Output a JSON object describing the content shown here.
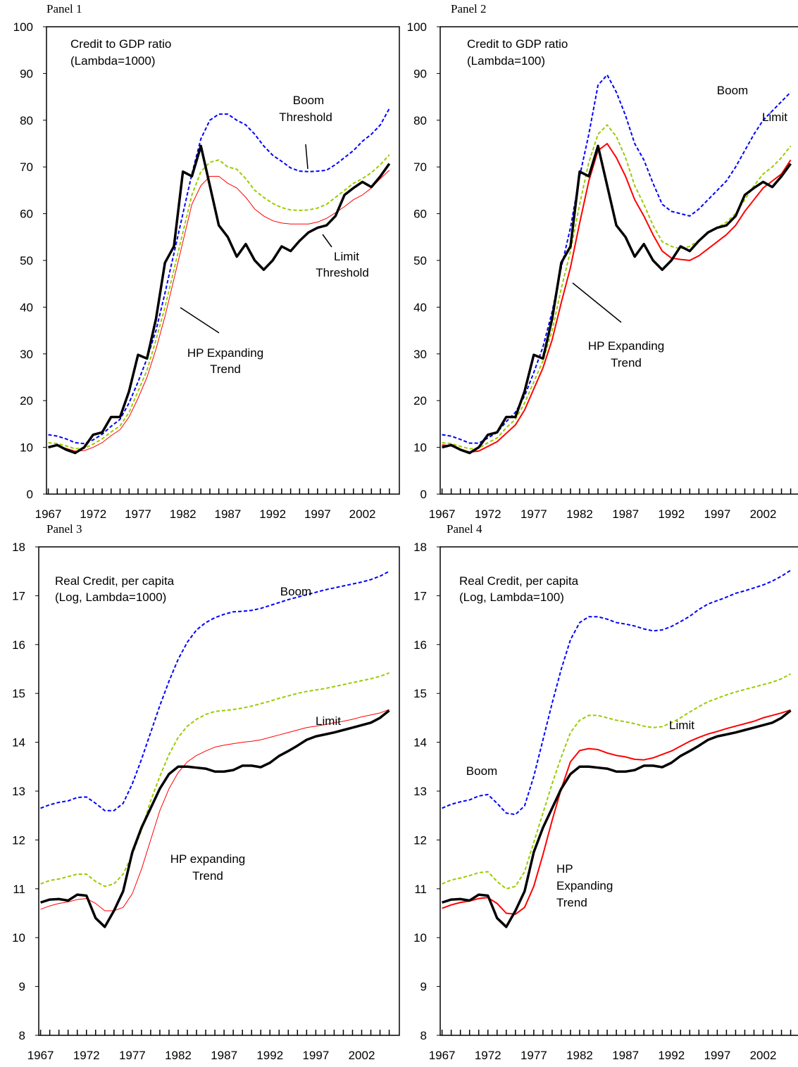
{
  "chart_data": [
    {
      "type": "line",
      "panel": "Panel 1",
      "annotations": [
        "Credit to GDP ratio",
        "(Lambda=1000)",
        "Boom",
        "Threshold",
        "Limit",
        "Threshold",
        "HP Expanding",
        "Trend"
      ],
      "x": [
        1967,
        1968,
        1969,
        1970,
        1971,
        1972,
        1973,
        1974,
        1975,
        1976,
        1977,
        1978,
        1979,
        1980,
        1981,
        1982,
        1983,
        1984,
        1985,
        1986,
        1987,
        1988,
        1989,
        1990,
        1991,
        1992,
        1993,
        1994,
        1995,
        1996,
        1997,
        1998,
        1999,
        2000,
        2001,
        2002,
        2003,
        2004,
        2005
      ],
      "xlim": [
        1966.8,
        2005.8
      ],
      "xticks": [
        1967,
        1972,
        1977,
        1982,
        1987,
        1992,
        1997,
        2002
      ],
      "ylim": [
        0,
        100
      ],
      "yticks": [
        0,
        10,
        20,
        30,
        40,
        50,
        60,
        70,
        80,
        90,
        100
      ],
      "series": [
        {
          "color": "#0000ff",
          "style": "dashed",
          "values": [
            12.7,
            12.4,
            11.8,
            11,
            10.8,
            11.6,
            12.8,
            14.5,
            16,
            19.5,
            24,
            29,
            35,
            43,
            51.5,
            60,
            68.5,
            76,
            80,
            81.3,
            81.3,
            80,
            79,
            77,
            74.5,
            72.5,
            71.2,
            69.8,
            69.1,
            69,
            69.1,
            69.3,
            70.5,
            72,
            73.5,
            75.5,
            77,
            79,
            82.5
          ]
        },
        {
          "color": "#99cc00",
          "style": "dashed",
          "values": [
            11,
            10.8,
            10.3,
            9.7,
            9.8,
            10.7,
            11.8,
            13.3,
            14.6,
            17.5,
            22,
            26.5,
            33,
            40,
            48,
            56,
            64,
            69,
            71,
            71.5,
            70,
            69.5,
            67.5,
            65,
            63.5,
            62.2,
            61.3,
            60.8,
            60.7,
            60.8,
            61.2,
            62,
            63.5,
            65,
            66.5,
            67.5,
            68.8,
            70.5,
            72.6
          ]
        },
        {
          "color": "#ff0000",
          "style": "thin",
          "values": [
            10,
            10.3,
            9.8,
            9.2,
            9.3,
            10,
            11,
            12.5,
            13.8,
            16.5,
            20.5,
            25,
            31,
            38,
            46,
            54,
            62,
            66,
            68,
            68,
            66.5,
            65.5,
            63.5,
            61,
            59.5,
            58.5,
            58,
            57.8,
            57.8,
            57.8,
            58.2,
            59,
            60.2,
            61.5,
            63,
            64,
            65.5,
            67.5,
            69.3
          ]
        },
        {
          "color": "#000000",
          "style": "thick",
          "values": [
            10,
            10.5,
            9.5,
            8.8,
            10,
            12.7,
            13.2,
            16.5,
            16.5,
            22,
            29.8,
            29,
            37.5,
            49.5,
            53,
            69,
            68,
            74.5,
            66,
            57.5,
            55,
            50.8,
            53.5,
            50,
            48,
            50,
            53,
            52,
            54.2,
            56,
            57,
            57.5,
            59.5,
            64,
            65.5,
            66.8,
            65.7,
            68,
            70.7
          ]
        }
      ]
    },
    {
      "type": "line",
      "panel": "Panel 2",
      "annotations": [
        "Credit to GDP ratio",
        "(Lambda=100)",
        "Boom",
        "Limit",
        "HP Expanding",
        "Trend"
      ],
      "x": [
        1967,
        1968,
        1969,
        1970,
        1971,
        1972,
        1973,
        1974,
        1975,
        1976,
        1977,
        1978,
        1979,
        1980,
        1981,
        1982,
        1983,
        1984,
        1985,
        1986,
        1987,
        1988,
        1989,
        1990,
        1991,
        1992,
        1993,
        1994,
        1995,
        1996,
        1997,
        1998,
        1999,
        2000,
        2001,
        2002,
        2003,
        2004,
        2005
      ],
      "xlim": [
        1966.8,
        2005.8
      ],
      "xticks": [
        1967,
        1972,
        1977,
        1982,
        1987,
        1992,
        1997,
        2002
      ],
      "ylim": [
        0,
        100
      ],
      "yticks": [
        0,
        10,
        20,
        30,
        40,
        50,
        60,
        70,
        80,
        90,
        100
      ],
      "series": [
        {
          "color": "#0000ff",
          "style": "dashed",
          "values": [
            12.7,
            12.4,
            11.7,
            10.9,
            10.9,
            12,
            13.2,
            15.5,
            17.5,
            21,
            26,
            31.5,
            39,
            48.5,
            57,
            68,
            77,
            87.5,
            89.7,
            86,
            81,
            75,
            71.5,
            66.5,
            62,
            60.5,
            60,
            59.5,
            61,
            63,
            65,
            67,
            70,
            73.5,
            77,
            80,
            82,
            84,
            86
          ]
        },
        {
          "color": "#99cc00",
          "style": "dashed",
          "values": [
            11,
            10.8,
            10.2,
            9.7,
            9.8,
            11,
            12,
            14.2,
            16,
            19.5,
            24,
            28.5,
            35,
            44,
            52,
            62,
            71,
            77,
            79,
            76.5,
            72,
            66,
            62,
            57.5,
            54,
            53,
            52.5,
            53,
            54.3,
            56,
            57,
            58.2,
            60,
            63,
            66,
            68.5,
            70,
            72,
            74.5
          ]
        },
        {
          "color": "#ff0000",
          "style": "medium",
          "values": [
            10.5,
            10.3,
            9.5,
            9,
            9.2,
            10.2,
            11.2,
            13,
            14.8,
            18,
            22.5,
            27,
            33,
            41,
            48.5,
            58,
            67,
            73.5,
            75,
            72,
            68,
            63,
            59.5,
            55.5,
            52,
            50.5,
            50.2,
            50,
            51,
            52.5,
            54,
            55.5,
            57.5,
            60.5,
            63,
            65.5,
            67,
            68.5,
            71.5
          ]
        },
        {
          "color": "#000000",
          "style": "thick",
          "values": [
            10,
            10.5,
            9.5,
            8.8,
            10,
            12.7,
            13.2,
            16.5,
            16.5,
            22,
            29.8,
            29,
            37.5,
            49.5,
            53,
            69,
            68,
            74.5,
            66,
            57.5,
            55,
            50.8,
            53.5,
            50,
            48,
            50,
            53,
            52,
            54.2,
            56,
            57,
            57.5,
            59.5,
            64,
            65.5,
            66.8,
            65.7,
            68,
            70.7
          ]
        }
      ]
    },
    {
      "type": "line",
      "panel": "Panel 3",
      "annotations": [
        "Real Credit, per capita",
        "(Log, Lambda=1000)",
        "Boom",
        "Limit",
        "HP expanding",
        "Trend"
      ],
      "x": [
        1967,
        1968,
        1969,
        1970,
        1971,
        1972,
        1973,
        1974,
        1975,
        1976,
        1977,
        1978,
        1979,
        1980,
        1981,
        1982,
        1983,
        1984,
        1985,
        1986,
        1987,
        1988,
        1989,
        1990,
        1991,
        1992,
        1993,
        1994,
        1995,
        1996,
        1997,
        1998,
        1999,
        2000,
        2001,
        2002,
        2003,
        2004,
        2005
      ],
      "xlim": [
        1966.8,
        2005.8
      ],
      "xticks": [
        1967,
        1972,
        1977,
        1982,
        1987,
        1992,
        1997,
        2002
      ],
      "ylim": [
        8,
        18
      ],
      "yticks": [
        8,
        9,
        10,
        11,
        12,
        13,
        14,
        15,
        16,
        17,
        18
      ],
      "series": [
        {
          "color": "#0000ff",
          "style": "dashed",
          "values": [
            12.65,
            12.72,
            12.77,
            12.8,
            12.87,
            12.88,
            12.75,
            12.6,
            12.6,
            12.75,
            13.15,
            13.65,
            14.2,
            14.75,
            15.25,
            15.7,
            16.05,
            16.3,
            16.45,
            16.55,
            16.62,
            16.67,
            16.68,
            16.7,
            16.74,
            16.8,
            16.86,
            16.92,
            16.97,
            17.02,
            17.07,
            17.12,
            17.16,
            17.2,
            17.24,
            17.28,
            17.33,
            17.4,
            17.5
          ]
        },
        {
          "color": "#99cc00",
          "style": "dashed",
          "values": [
            11.1,
            11.17,
            11.2,
            11.25,
            11.3,
            11.3,
            11.15,
            11.05,
            11.1,
            11.3,
            11.7,
            12.2,
            12.8,
            13.3,
            13.75,
            14.1,
            14.33,
            14.47,
            14.57,
            14.63,
            14.65,
            14.67,
            14.7,
            14.74,
            14.79,
            14.84,
            14.9,
            14.95,
            15,
            15.04,
            15.07,
            15.1,
            15.14,
            15.18,
            15.22,
            15.26,
            15.3,
            15.35,
            15.42
          ]
        },
        {
          "color": "#ff0000",
          "style": "thin",
          "values": [
            10.58,
            10.65,
            10.7,
            10.73,
            10.78,
            10.8,
            10.7,
            10.55,
            10.55,
            10.62,
            10.9,
            11.4,
            12,
            12.6,
            13.05,
            13.38,
            13.6,
            13.73,
            13.82,
            13.9,
            13.94,
            13.97,
            14,
            14.02,
            14.05,
            14.1,
            14.15,
            14.2,
            14.25,
            14.3,
            14.33,
            14.36,
            14.4,
            14.43,
            14.47,
            14.52,
            14.56,
            14.6,
            14.67
          ]
        },
        {
          "color": "#000000",
          "style": "thick",
          "values": [
            10.72,
            10.78,
            10.79,
            10.76,
            10.88,
            10.86,
            10.4,
            10.22,
            10.55,
            10.95,
            11.75,
            12.25,
            12.65,
            13.05,
            13.35,
            13.5,
            13.5,
            13.48,
            13.46,
            13.4,
            13.4,
            13.43,
            13.52,
            13.52,
            13.49,
            13.58,
            13.72,
            13.82,
            13.93,
            14.05,
            14.12,
            14.16,
            14.2,
            14.25,
            14.3,
            14.35,
            14.4,
            14.5,
            14.65
          ]
        }
      ]
    },
    {
      "type": "line",
      "panel": "Panel 4",
      "annotations": [
        "Real Credit, per capita",
        "(Log, Lambda=100)",
        "Boom",
        "Limit",
        "HP",
        "Expanding",
        "Trend"
      ],
      "x": [
        1967,
        1968,
        1969,
        1970,
        1971,
        1972,
        1973,
        1974,
        1975,
        1976,
        1977,
        1978,
        1979,
        1980,
        1981,
        1982,
        1983,
        1984,
        1985,
        1986,
        1987,
        1988,
        1989,
        1990,
        1991,
        1992,
        1993,
        1994,
        1995,
        1996,
        1997,
        1998,
        1999,
        2000,
        2001,
        2002,
        2003,
        2004,
        2005
      ],
      "xlim": [
        1966.8,
        2005.8
      ],
      "xticks": [
        1967,
        1972,
        1977,
        1982,
        1987,
        1992,
        1997,
        2002
      ],
      "ylim": [
        8,
        18
      ],
      "yticks": [
        8,
        9,
        10,
        11,
        12,
        13,
        14,
        15,
        16,
        17,
        18
      ],
      "series": [
        {
          "color": "#0000ff",
          "style": "dashed",
          "values": [
            12.65,
            12.73,
            12.78,
            12.82,
            12.9,
            12.93,
            12.75,
            12.55,
            12.52,
            12.7,
            13.3,
            14.05,
            14.8,
            15.5,
            16.1,
            16.45,
            16.57,
            16.57,
            16.52,
            16.45,
            16.42,
            16.38,
            16.32,
            16.28,
            16.3,
            16.37,
            16.47,
            16.58,
            16.72,
            16.83,
            16.9,
            16.97,
            17.05,
            17.1,
            17.16,
            17.22,
            17.3,
            17.4,
            17.52
          ]
        },
        {
          "color": "#99cc00",
          "style": "dashed",
          "values": [
            11.1,
            11.18,
            11.22,
            11.27,
            11.33,
            11.35,
            11.15,
            11,
            11.05,
            11.35,
            11.95,
            12.55,
            13.15,
            13.7,
            14.2,
            14.45,
            14.55,
            14.55,
            14.5,
            14.45,
            14.42,
            14.38,
            14.33,
            14.3,
            14.32,
            14.4,
            14.5,
            14.62,
            14.73,
            14.83,
            14.9,
            14.97,
            15.03,
            15.08,
            15.13,
            15.18,
            15.23,
            15.3,
            15.4
          ]
        },
        {
          "color": "#ff0000",
          "style": "medium",
          "values": [
            10.6,
            10.67,
            10.72,
            10.75,
            10.8,
            10.82,
            10.7,
            10.5,
            10.48,
            10.62,
            11.05,
            11.7,
            12.4,
            13.05,
            13.6,
            13.83,
            13.87,
            13.85,
            13.78,
            13.73,
            13.7,
            13.65,
            13.64,
            13.68,
            13.75,
            13.82,
            13.92,
            14.02,
            14.1,
            14.17,
            14.22,
            14.28,
            14.33,
            14.38,
            14.43,
            14.5,
            14.55,
            14.6,
            14.66
          ]
        },
        {
          "color": "#000000",
          "style": "thick",
          "values": [
            10.72,
            10.78,
            10.79,
            10.76,
            10.88,
            10.86,
            10.4,
            10.22,
            10.55,
            10.95,
            11.75,
            12.25,
            12.65,
            13.05,
            13.35,
            13.5,
            13.5,
            13.48,
            13.46,
            13.4,
            13.4,
            13.43,
            13.52,
            13.52,
            13.49,
            13.58,
            13.72,
            13.82,
            13.93,
            14.05,
            14.12,
            14.16,
            14.2,
            14.25,
            14.3,
            14.35,
            14.4,
            14.5,
            14.65
          ]
        }
      ]
    }
  ]
}
